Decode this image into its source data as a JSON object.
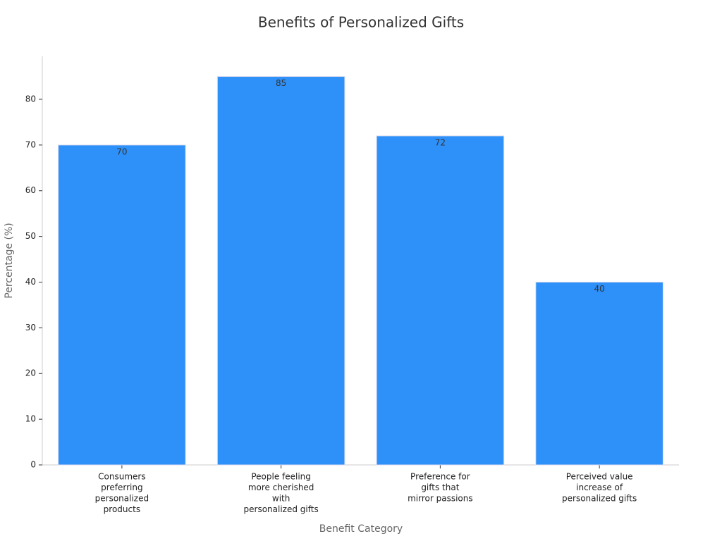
{
  "chart_data": {
    "type": "bar",
    "title": "Benefits of Personalized Gifts",
    "x_label": "Benefit Category",
    "y_label": "Percentage (%)",
    "categories": [
      [
        "Consumers",
        "preferring",
        "personalized",
        "products"
      ],
      [
        "People feeling",
        "more cherished",
        "with",
        "personalized gifts"
      ],
      [
        "Preference for",
        "gifts that",
        "mirror passions"
      ],
      [
        "Perceived value",
        "increase of",
        "personalized gifts"
      ]
    ],
    "values": [
      70,
      85,
      72,
      40
    ],
    "color": "#2e90f9",
    "ylim": [
      0,
      89.4
    ],
    "yticks": [
      0,
      10,
      20,
      30,
      40,
      50,
      60,
      70,
      80
    ],
    "grid": false
  }
}
